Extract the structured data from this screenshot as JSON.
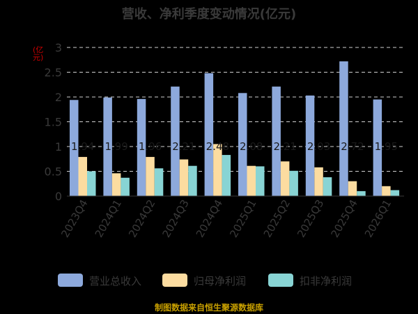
{
  "chart_data": {
    "type": "bar",
    "title": "营收、净利季度变动情况(亿元)",
    "ylabel": "(亿元)",
    "xlabel": "",
    "ylim": [
      0,
      3
    ],
    "yticks": [
      "0",
      "0.5",
      "1",
      "1.5",
      "2",
      "2.5",
      "3"
    ],
    "grid": true,
    "legend_position": "bottom",
    "categories": [
      "2023Q4",
      "2024Q1",
      "2024Q2",
      "2024Q3",
      "2024Q4",
      "2025Q1",
      "2025Q2",
      "2025Q3",
      "2025Q4",
      "2026Q1"
    ],
    "series": [
      {
        "name": "营业总收入",
        "color": "#8da9dc",
        "values": [
          1.94,
          1.99,
          1.96,
          2.21,
          2.48,
          2.08,
          2.21,
          2.03,
          2.72,
          1.95
        ]
      },
      {
        "name": "归母净利润",
        "color": "#fcdca0",
        "values": [
          0.79,
          0.46,
          0.79,
          0.74,
          1.05,
          0.61,
          0.7,
          0.58,
          0.3,
          0.2
        ]
      },
      {
        "name": "扣非净利润",
        "color": "#88d4d4",
        "values": [
          0.5,
          0.37,
          0.56,
          0.61,
          0.83,
          0.6,
          0.51,
          0.38,
          0.1,
          0.12
        ]
      }
    ],
    "data_labels": [
      "1.94",
      "1.99",
      "1.96",
      "2.21",
      "2.48",
      "2.08",
      "2.21",
      "2.03",
      "2.72",
      "1.95"
    ]
  },
  "footer": "制图数据来自恒生聚源数据库"
}
